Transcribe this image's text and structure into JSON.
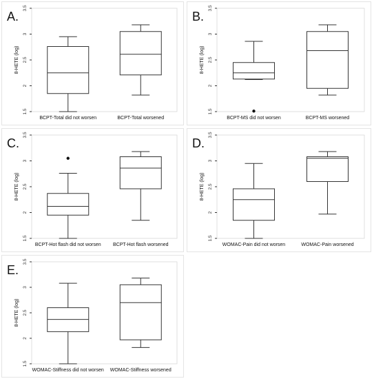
{
  "chart_data": [
    {
      "panel": "A.",
      "type": "box",
      "ylabel": "8-HETE (log)",
      "ylim": [
        1.5,
        3.5
      ],
      "yticks": [
        "1.5",
        "2",
        "2.5",
        "3",
        "3.5"
      ],
      "categories": [
        "BCPT-Total did not worsen",
        "BCPT-Total worsened"
      ],
      "boxes": [
        {
          "min": 1.5,
          "q1": 1.85,
          "median": 2.25,
          "q3": 2.76,
          "max": 2.95,
          "outliers": []
        },
        {
          "min": 1.82,
          "q1": 2.21,
          "median": 2.61,
          "q3": 3.05,
          "max": 3.18,
          "outliers": []
        }
      ]
    },
    {
      "panel": "B.",
      "type": "box",
      "ylabel": "8-HETE (log)",
      "ylim": [
        1.5,
        3.5
      ],
      "yticks": [
        "1.5",
        "2",
        "2.5",
        "3",
        "3.5"
      ],
      "categories": [
        "BCPT-MS did not worsen",
        "BCPT-MS worsened"
      ],
      "boxes": [
        {
          "min": 2.12,
          "q1": 2.13,
          "median": 2.25,
          "q3": 2.45,
          "max": 2.86,
          "outliers": [
            1.51
          ]
        },
        {
          "min": 1.82,
          "q1": 1.95,
          "median": 2.68,
          "q3": 3.05,
          "max": 3.18,
          "outliers": []
        }
      ]
    },
    {
      "panel": "C.",
      "type": "box",
      "ylabel": "8-HETE (log)",
      "ylim": [
        1.5,
        3.5
      ],
      "yticks": [
        "1.5",
        "2",
        "2.5",
        "3",
        "3.5"
      ],
      "categories": [
        "BCPT-Hot flash did not worsen",
        "BCPT-Hot flash worsened"
      ],
      "boxes": [
        {
          "min": 1.5,
          "q1": 1.95,
          "median": 2.12,
          "q3": 2.37,
          "max": 2.76,
          "outliers": [
            3.05
          ]
        },
        {
          "min": 1.85,
          "q1": 2.46,
          "median": 2.86,
          "q3": 3.08,
          "max": 3.18,
          "outliers": []
        }
      ]
    },
    {
      "panel": "D.",
      "type": "box",
      "ylabel": "8-HETE (log)",
      "ylim": [
        1.5,
        3.5
      ],
      "yticks": [
        "1.5",
        "2",
        "2.5",
        "3",
        "3.5"
      ],
      "categories": [
        "WOMAC-Pain did not worsen",
        "WOMAC-Pain worsened"
      ],
      "boxes": [
        {
          "min": 1.5,
          "q1": 1.85,
          "median": 2.25,
          "q3": 2.46,
          "max": 2.95,
          "outliers": []
        },
        {
          "min": 1.97,
          "q1": 2.6,
          "median": 3.05,
          "q3": 3.08,
          "max": 3.18,
          "outliers": []
        }
      ]
    },
    {
      "panel": "E.",
      "type": "box",
      "ylabel": "8-HETE (log)",
      "ylim": [
        1.5,
        3.5
      ],
      "yticks": [
        "1.5",
        "2",
        "2.5",
        "3",
        "3.5"
      ],
      "categories": [
        "WOMAC-Stiffness did not worsen",
        "WOMAC-Stiffness worsened"
      ],
      "boxes": [
        {
          "min": 1.5,
          "q1": 2.13,
          "median": 2.37,
          "q3": 2.6,
          "max": 3.08,
          "outliers": []
        },
        {
          "min": 1.82,
          "q1": 1.97,
          "median": 2.7,
          "q3": 3.05,
          "max": 3.18,
          "outliers": []
        }
      ]
    }
  ]
}
